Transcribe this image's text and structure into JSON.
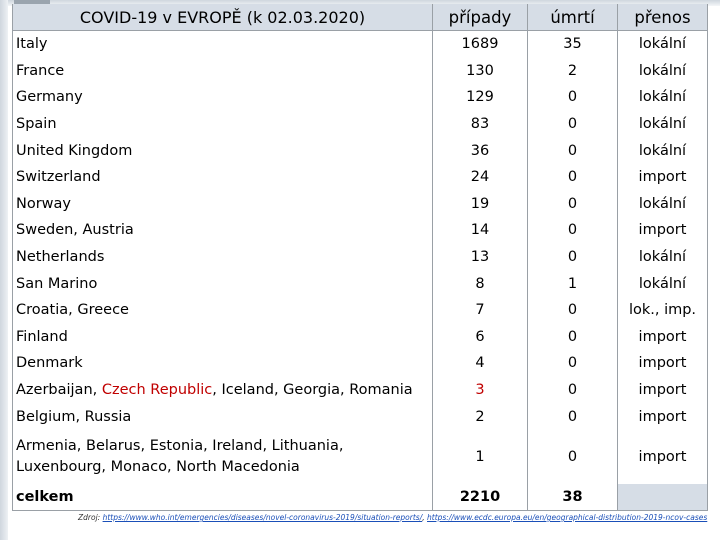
{
  "header": {
    "title": "COVID-19 v EVROPĚ (k 02.03.2020)",
    "cases": "případy",
    "deaths": "úmrtí",
    "transmission": "přenos"
  },
  "rows": [
    {
      "name": "Italy",
      "cases": "1689",
      "deaths": "35",
      "transmission": "lokální"
    },
    {
      "name": "France",
      "cases": "130",
      "deaths": "2",
      "transmission": "lokální"
    },
    {
      "name": "Germany",
      "cases": "129",
      "deaths": "0",
      "transmission": "lokální"
    },
    {
      "name": "Spain",
      "cases": "83",
      "deaths": "0",
      "transmission": "lokální"
    },
    {
      "name": "United Kingdom",
      "cases": "36",
      "deaths": "0",
      "transmission": "lokální"
    },
    {
      "name": "Switzerland",
      "cases": "24",
      "deaths": "0",
      "transmission": "import"
    },
    {
      "name": "Norway",
      "cases": "19",
      "deaths": "0",
      "transmission": "lokální"
    },
    {
      "name": "Sweden, Austria",
      "cases": "14",
      "deaths": "0",
      "transmission": "import"
    },
    {
      "name": "Netherlands",
      "cases": "13",
      "deaths": "0",
      "transmission": "lokální"
    },
    {
      "name": "San Marino",
      "cases": "8",
      "deaths": "1",
      "transmission": "lokální"
    },
    {
      "name": "Croatia, Greece",
      "cases": "7",
      "deaths": "0",
      "transmission": "lok., imp."
    },
    {
      "name": "Finland",
      "cases": "6",
      "deaths": "0",
      "transmission": "import"
    },
    {
      "name": "Denmark",
      "cases": "4",
      "deaths": "0",
      "transmission": "import"
    }
  ],
  "highlight_row": {
    "before": "Azerbaijan, ",
    "highlight": "Czech Republic",
    "after": ", Iceland, Georgia, Romania",
    "cases": "3",
    "deaths": "0",
    "transmission": "import",
    "highlight_color": "#c00000"
  },
  "row_belgium": {
    "name": "Belgium, Russia",
    "cases": "2",
    "deaths": "0",
    "transmission": "import"
  },
  "row_multi": {
    "line1": "Armenia, Belarus, Estonia, Ireland, Lithuania,",
    "line2": "Luxenbourg, Monaco, North Macedonia",
    "cases": "1",
    "deaths": "0",
    "transmission": "import"
  },
  "total": {
    "label": "celkem",
    "cases": "2210",
    "deaths": "38"
  },
  "source": {
    "prefix": "Zdroj: ",
    "link1": "https://www.who.int/emergencies/diseases/novel-coronavirus-2019/situation-reports/",
    "sep": ", ",
    "link2": "https://www.ecdc.europa.eu/en/geographical-distribution-2019-ncov-cases"
  }
}
